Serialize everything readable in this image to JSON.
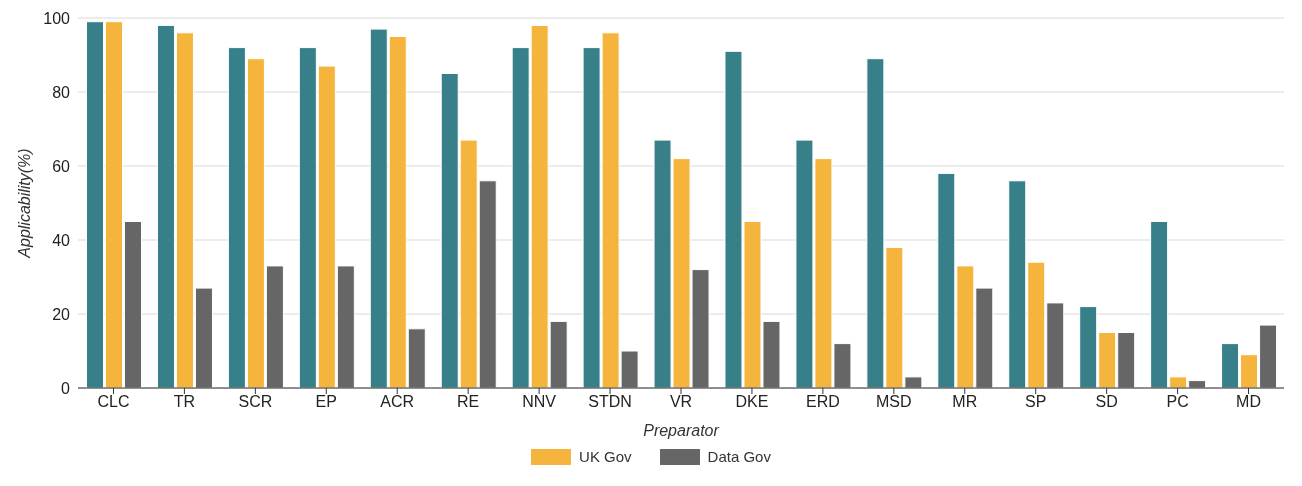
{
  "chart_data": {
    "type": "bar",
    "xlabel": "Preparator",
    "ylabel": "Applicability(%)",
    "categories": [
      "CLC",
      "TR",
      "SCR",
      "EP",
      "ACR",
      "RE",
      "NNV",
      "STDN",
      "VR",
      "DKE",
      "ERD",
      "MSD",
      "MR",
      "SP",
      "SD",
      "PC",
      "MD"
    ],
    "series": [
      {
        "color": "#37808a",
        "values": [
          99,
          98,
          92,
          92,
          97,
          85,
          92,
          92,
          67,
          91,
          67,
          89,
          58,
          56,
          22,
          45,
          12
        ]
      },
      {
        "name": "UK Gov",
        "color": "#f5b53d",
        "values": [
          99,
          96,
          89,
          87,
          95,
          67,
          98,
          96,
          62,
          45,
          62,
          38,
          33,
          34,
          15,
          3,
          9
        ]
      },
      {
        "name": "Data Gov",
        "color": "#666666",
        "values": [
          45,
          27,
          33,
          33,
          16,
          56,
          18,
          10,
          32,
          18,
          12,
          3,
          27,
          23,
          15,
          2,
          17
        ]
      }
    ],
    "ylim": [
      0,
      100
    ],
    "yticks": [
      0,
      20,
      40,
      60,
      80,
      100
    ],
    "grid": "y",
    "legend": "bottom"
  }
}
